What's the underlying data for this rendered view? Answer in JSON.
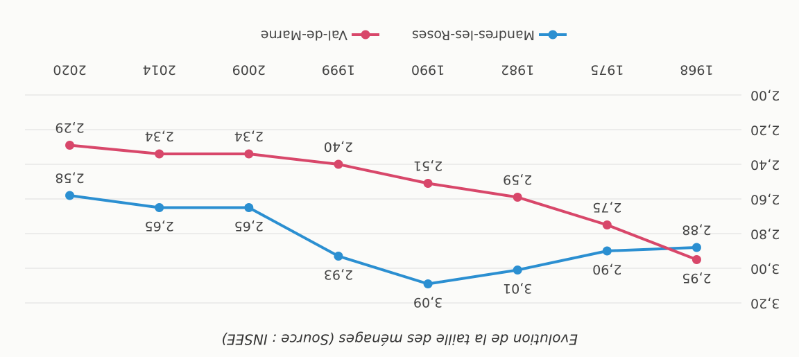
{
  "chart_data": {
    "type": "line",
    "title": "Evolution de la taille des ménages (Source : INSEE)",
    "categories": [
      "1968",
      "1975",
      "1982",
      "1990",
      "1999",
      "2009",
      "2014",
      "2020"
    ],
    "series": [
      {
        "name": "Mandres-les-Roses",
        "color": "#2b8fd1",
        "values": [
          2.88,
          2.9,
          3.01,
          3.09,
          2.93,
          2.65,
          2.65,
          2.58
        ],
        "value_labels": [
          "2,88",
          "2,90",
          "3,01",
          "3,09",
          "2,93",
          "2,65",
          "2,65",
          "2,58"
        ]
      },
      {
        "name": "Val-de-Marne",
        "color": "#d8476a",
        "values": [
          2.95,
          2.75,
          2.59,
          2.51,
          2.4,
          2.34,
          2.34,
          2.29
        ],
        "value_labels": [
          "2,95",
          "2,75",
          "2,59",
          "2,51",
          "2,40",
          "2,34",
          "2,34",
          "2,29"
        ]
      }
    ],
    "ylim": [
      2.0,
      3.2
    ],
    "yticks": [
      {
        "value": 2.0,
        "label": "2,00"
      },
      {
        "value": 2.2,
        "label": "2,20"
      },
      {
        "value": 2.4,
        "label": "2,40"
      },
      {
        "value": 2.6,
        "label": "2,60"
      },
      {
        "value": 2.8,
        "label": "2,80"
      },
      {
        "value": 3.0,
        "label": "3,00"
      },
      {
        "value": 3.2,
        "label": "3,20"
      }
    ],
    "grid": true,
    "legend": "bottom"
  }
}
